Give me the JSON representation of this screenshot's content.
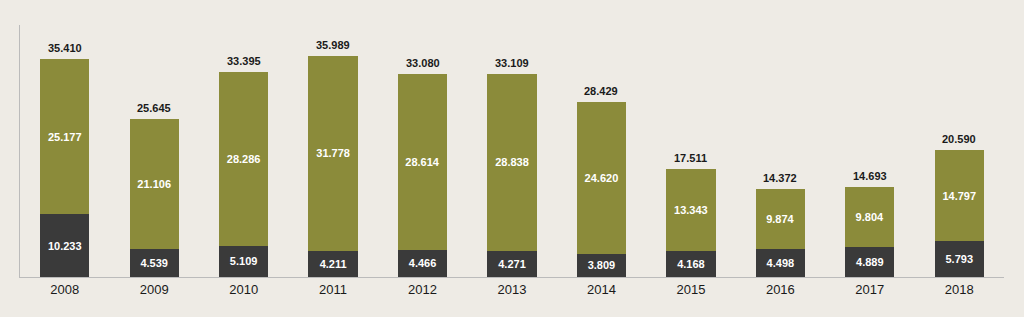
{
  "chart_data": {
    "type": "bar",
    "stacked": true,
    "data_labels": true,
    "grid": false,
    "tick_labels": "x",
    "categories": [
      "2008",
      "2009",
      "2010",
      "2011",
      "2012",
      "2013",
      "2014",
      "2015",
      "2016",
      "2017",
      "2018"
    ],
    "series": [
      {
        "color": "#3a3a3a",
        "values": [
          10.233,
          4.539,
          5.109,
          4.211,
          4.466,
          4.271,
          3.809,
          4.168,
          4.498,
          4.889,
          5.793
        ],
        "value_labels": [
          "10.233",
          "4.539",
          "5.109",
          "4.211",
          "4.466",
          "4.271",
          "3.809",
          "4.168",
          "4.498",
          "4.889",
          "5.793"
        ]
      },
      {
        "color": "#8b8b3a",
        "values": [
          25.177,
          21.106,
          28.286,
          31.778,
          28.614,
          28.838,
          24.62,
          13.343,
          9.874,
          9.804,
          14.797
        ],
        "value_labels": [
          "25.177",
          "21.106",
          "28.286",
          "31.778",
          "28.614",
          "28.838",
          "24.620",
          "13.343",
          "9.874",
          "9.804",
          "14.797"
        ]
      }
    ],
    "totals": [
      35.41,
      25.645,
      33.395,
      35.989,
      33.08,
      33.109,
      28.429,
      17.511,
      14.372,
      14.693,
      20.59
    ],
    "total_labels": [
      "35.410",
      "25.645",
      "33.395",
      "35.989",
      "33.080",
      "33.109",
      "28.429",
      "17.511",
      "14.372",
      "14.693",
      "20.590"
    ],
    "ylim": [
      0,
      41
    ],
    "yticks": []
  }
}
